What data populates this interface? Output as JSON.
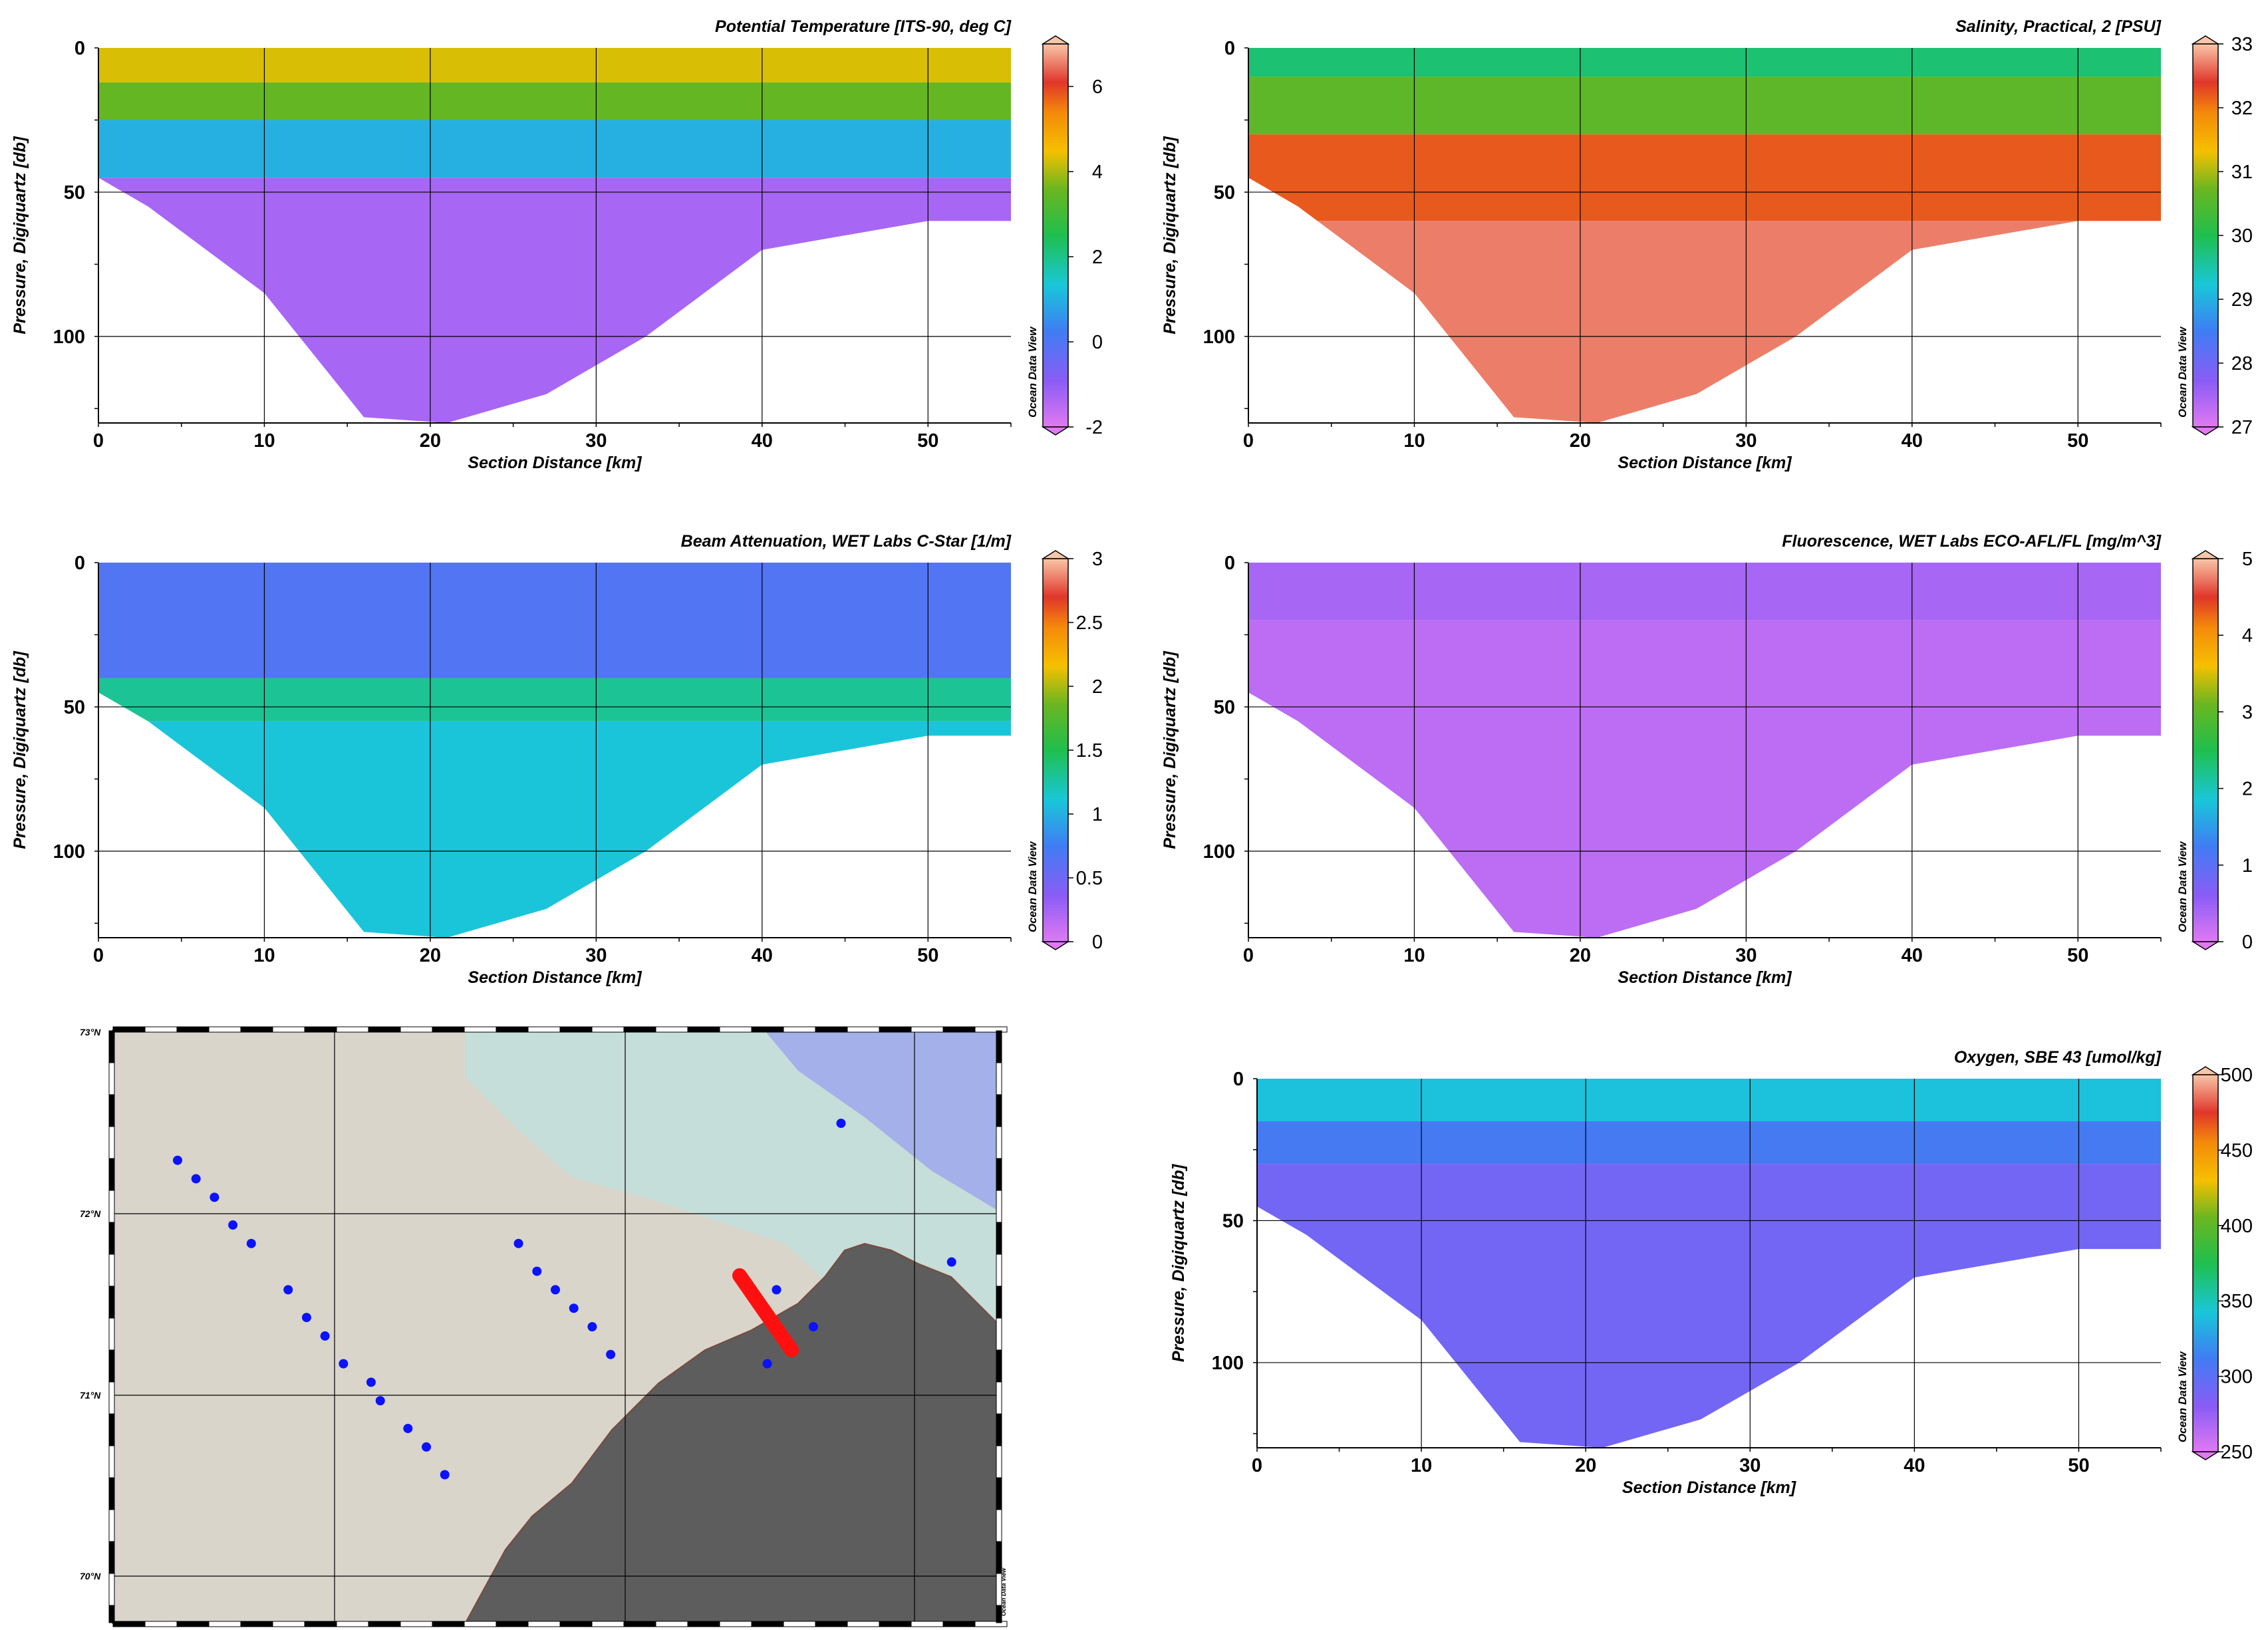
{
  "watermark": "Ocean Data View",
  "chart_data": [
    {
      "type": "heatmap",
      "title": "Potential Temperature [ITS-90, deg C]",
      "xlabel": "Section Distance [km]",
      "ylabel": "Pressure, Digiquartz [db]",
      "xlim": [
        0,
        55
      ],
      "ylim": [
        130,
        0
      ],
      "xticks": [
        0,
        10,
        20,
        30,
        40,
        50
      ],
      "yticks": [
        0,
        50,
        100
      ],
      "colorbar": {
        "min": -2,
        "max": 7,
        "ticks": [
          -2,
          0,
          2,
          4,
          6
        ]
      },
      "layers": [
        {
          "depth_max": 12,
          "value": 4.3
        },
        {
          "depth_max": 25,
          "value": 3.5
        },
        {
          "depth_max": 45,
          "value": 1.0
        },
        {
          "depth_max": 130,
          "value": -1.3
        }
      ],
      "station_bottoms": [
        [
          0,
          45
        ],
        [
          3,
          55
        ],
        [
          10,
          85
        ],
        [
          16,
          128
        ],
        [
          21,
          130
        ],
        [
          27,
          120
        ],
        [
          33,
          100
        ],
        [
          40,
          70
        ],
        [
          50,
          60
        ],
        [
          55,
          60
        ]
      ]
    },
    {
      "type": "heatmap",
      "title": "Salinity, Practical, 2 [PSU]",
      "xlabel": "Section Distance [km]",
      "ylabel": "Pressure, Digiquartz [db]",
      "xlim": [
        0,
        55
      ],
      "ylim": [
        130,
        0
      ],
      "xticks": [
        0,
        10,
        20,
        30,
        40,
        50
      ],
      "yticks": [
        0,
        50,
        100
      ],
      "colorbar": {
        "min": 27,
        "max": 33,
        "ticks": [
          27,
          28,
          29,
          30,
          31,
          32,
          33
        ]
      },
      "layers": [
        {
          "depth_max": 10,
          "value": 29.8
        },
        {
          "depth_max": 30,
          "value": 30.6
        },
        {
          "depth_max": 60,
          "value": 32.2
        },
        {
          "depth_max": 130,
          "value": 32.7
        }
      ],
      "station_bottoms": [
        [
          0,
          45
        ],
        [
          3,
          55
        ],
        [
          10,
          85
        ],
        [
          16,
          128
        ],
        [
          21,
          130
        ],
        [
          27,
          120
        ],
        [
          33,
          100
        ],
        [
          40,
          70
        ],
        [
          50,
          60
        ],
        [
          55,
          60
        ]
      ]
    },
    {
      "type": "heatmap",
      "title": "Beam Attenuation, WET Labs C-Star [1/m]",
      "xlabel": "Section Distance [km]",
      "ylabel": "Pressure, Digiquartz [db]",
      "xlim": [
        0,
        55
      ],
      "ylim": [
        130,
        0
      ],
      "xticks": [
        0,
        10,
        20,
        30,
        40,
        50
      ],
      "yticks": [
        0,
        50,
        100
      ],
      "colorbar": {
        "min": 0,
        "max": 3,
        "ticks": [
          0,
          0.5,
          1,
          1.5,
          2,
          2.5,
          3
        ]
      },
      "layers": [
        {
          "depth_max": 40,
          "value": 0.65
        },
        {
          "depth_max": 55,
          "value": 1.3
        },
        {
          "depth_max": 130,
          "value": 1.1
        }
      ],
      "station_bottoms": [
        [
          0,
          45
        ],
        [
          3,
          55
        ],
        [
          10,
          85
        ],
        [
          16,
          128
        ],
        [
          21,
          130
        ],
        [
          27,
          120
        ],
        [
          33,
          100
        ],
        [
          40,
          70
        ],
        [
          50,
          60
        ],
        [
          55,
          60
        ]
      ]
    },
    {
      "type": "heatmap",
      "title": "Fluorescence, WET Labs ECO-AFL/FL [mg/m^3]",
      "xlabel": "Section Distance [km]",
      "ylabel": "Pressure, Digiquartz [db]",
      "xlim": [
        0,
        55
      ],
      "ylim": [
        130,
        0
      ],
      "xticks": [
        0,
        10,
        20,
        30,
        40,
        50
      ],
      "yticks": [
        0,
        50,
        100
      ],
      "colorbar": {
        "min": 0,
        "max": 5,
        "ticks": [
          0,
          1,
          2,
          3,
          4,
          5
        ]
      },
      "layers": [
        {
          "depth_max": 20,
          "value": 0.4
        },
        {
          "depth_max": 130,
          "value": 0.25
        }
      ],
      "station_bottoms": [
        [
          0,
          45
        ],
        [
          3,
          55
        ],
        [
          10,
          85
        ],
        [
          16,
          128
        ],
        [
          21,
          130
        ],
        [
          27,
          120
        ],
        [
          33,
          100
        ],
        [
          40,
          70
        ],
        [
          50,
          60
        ],
        [
          55,
          60
        ]
      ]
    },
    {
      "type": "scatter",
      "map": true,
      "lat_labels": [
        "73°N",
        "72°N",
        "71°N",
        "70°N"
      ],
      "stations": [
        {
          "lon": -164.5,
          "lat": 72.3
        },
        {
          "lon": -164.3,
          "lat": 72.2
        },
        {
          "lon": -164.1,
          "lat": 72.1
        },
        {
          "lon": -163.9,
          "lat": 71.95
        },
        {
          "lon": -163.7,
          "lat": 71.85
        },
        {
          "lon": -163.3,
          "lat": 71.6
        },
        {
          "lon": -163.1,
          "lat": 71.45
        },
        {
          "lon": -162.9,
          "lat": 71.35
        },
        {
          "lon": -162.7,
          "lat": 71.2
        },
        {
          "lon": -162.4,
          "lat": 71.1
        },
        {
          "lon": -162.3,
          "lat": 71.0
        },
        {
          "lon": -162.0,
          "lat": 70.85
        },
        {
          "lon": -161.8,
          "lat": 70.75
        },
        {
          "lon": -161.6,
          "lat": 70.6
        },
        {
          "lon": -160.8,
          "lat": 71.85
        },
        {
          "lon": -160.6,
          "lat": 71.7
        },
        {
          "lon": -160.4,
          "lat": 71.6
        },
        {
          "lon": -160.2,
          "lat": 71.5
        },
        {
          "lon": -160.0,
          "lat": 71.4
        },
        {
          "lon": -159.8,
          "lat": 71.25
        },
        {
          "lon": -158.1,
          "lat": 71.2
        },
        {
          "lon": -157.3,
          "lat": 72.5
        },
        {
          "lon": -156.1,
          "lat": 71.75
        },
        {
          "lon": -158.0,
          "lat": 71.6
        },
        {
          "lon": -157.6,
          "lat": 71.4
        }
      ],
      "highlighted_section": "red"
    },
    {
      "type": "heatmap",
      "title": "Oxygen, SBE 43 [umol/kg]",
      "xlabel": "Section Distance [km]",
      "ylabel": "Pressure, Digiquartz [db]",
      "xlim": [
        0,
        55
      ],
      "ylim": [
        130,
        0
      ],
      "xticks": [
        0,
        10,
        20,
        30,
        40,
        50
      ],
      "yticks": [
        0,
        50,
        100
      ],
      "colorbar": {
        "min": 250,
        "max": 500,
        "ticks": [
          250,
          300,
          350,
          400,
          450,
          500
        ]
      },
      "layers": [
        {
          "depth_max": 15,
          "value": 340
        },
        {
          "depth_max": 30,
          "value": 310
        },
        {
          "depth_max": 130,
          "value": 290
        }
      ],
      "station_bottoms": [
        [
          0,
          45
        ],
        [
          3,
          55
        ],
        [
          10,
          85
        ],
        [
          16,
          128
        ],
        [
          21,
          130
        ],
        [
          27,
          120
        ],
        [
          33,
          100
        ],
        [
          40,
          70
        ],
        [
          50,
          60
        ],
        [
          55,
          60
        ]
      ]
    }
  ]
}
